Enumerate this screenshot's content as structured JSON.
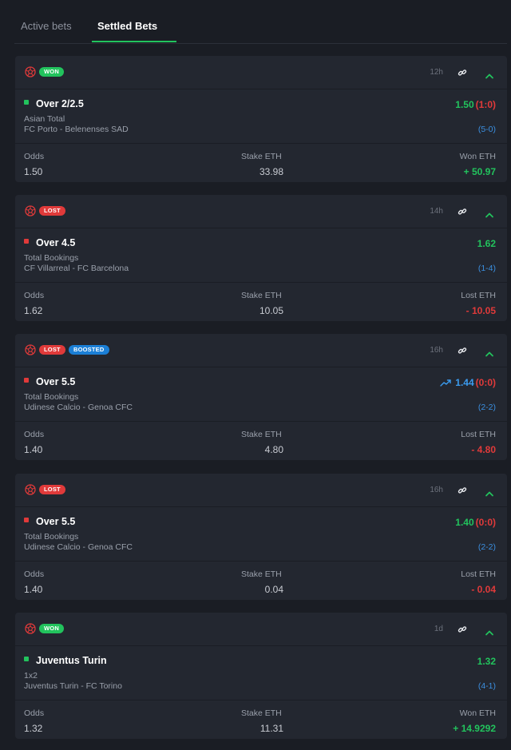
{
  "tabs": [
    {
      "label": "Active bets",
      "active": false
    },
    {
      "label": "Settled Bets",
      "active": true
    }
  ],
  "colors": {
    "won": "#22c35d",
    "lost": "#e03a3a",
    "boosted": "#1b7fd6",
    "score": "#3b8fe0",
    "background": "#1a1d24",
    "card": "#232730"
  },
  "labels": {
    "odds": "Odds",
    "stake": "Stake ETH"
  },
  "bets": [
    {
      "status": "won",
      "badges": [
        {
          "type": "won",
          "label": "WON"
        }
      ],
      "time": "12h",
      "selection": "Over 2/2.5",
      "market": "Asian Total",
      "match": "FC Porto - Belenenses SAD",
      "odds_value": "1.50",
      "odds_color": "green",
      "live_score": "(1:0)",
      "trend": false,
      "score": "(5-0)",
      "odds": "1.50",
      "stake": "33.98",
      "result_label": "Won ETH",
      "result_value": "+ 50.97"
    },
    {
      "status": "lost",
      "badges": [
        {
          "type": "lost",
          "label": "LOST"
        }
      ],
      "time": "14h",
      "selection": "Over 4.5",
      "market": "Total Bookings",
      "match": "CF Villarreal - FC Barcelona",
      "odds_value": "1.62",
      "odds_color": "green",
      "live_score": "",
      "trend": false,
      "score": "(1-4)",
      "odds": "1.62",
      "stake": "10.05",
      "result_label": "Lost ETH",
      "result_value": "- 10.05"
    },
    {
      "status": "lost",
      "badges": [
        {
          "type": "lost",
          "label": "LOST"
        },
        {
          "type": "boosted",
          "label": "BOOSTED"
        }
      ],
      "time": "16h",
      "selection": "Over 5.5",
      "market": "Total Bookings",
      "match": "Udinese Calcio - Genoa CFC",
      "odds_value": "1.44",
      "odds_color": "blue",
      "live_score": "(0:0)",
      "trend": true,
      "score": "(2-2)",
      "odds": "1.40",
      "stake": "4.80",
      "result_label": "Lost ETH",
      "result_value": "- 4.80"
    },
    {
      "status": "lost",
      "badges": [
        {
          "type": "lost",
          "label": "LOST"
        }
      ],
      "time": "16h",
      "selection": "Over 5.5",
      "market": "Total Bookings",
      "match": "Udinese Calcio - Genoa CFC",
      "odds_value": "1.40",
      "odds_color": "green",
      "live_score": "(0:0)",
      "trend": false,
      "score": "(2-2)",
      "odds": "1.40",
      "stake": "0.04",
      "result_label": "Lost ETH",
      "result_value": "- 0.04"
    },
    {
      "status": "won",
      "badges": [
        {
          "type": "won",
          "label": "WON"
        }
      ],
      "time": "1d",
      "selection": "Juventus Turin",
      "market": "1x2",
      "match": "Juventus Turin - FC Torino",
      "odds_value": "1.32",
      "odds_color": "green",
      "live_score": "",
      "trend": false,
      "score": "(4-1)",
      "odds": "1.32",
      "stake": "11.31",
      "result_label": "Won ETH",
      "result_value": "+ 14.9292"
    }
  ]
}
